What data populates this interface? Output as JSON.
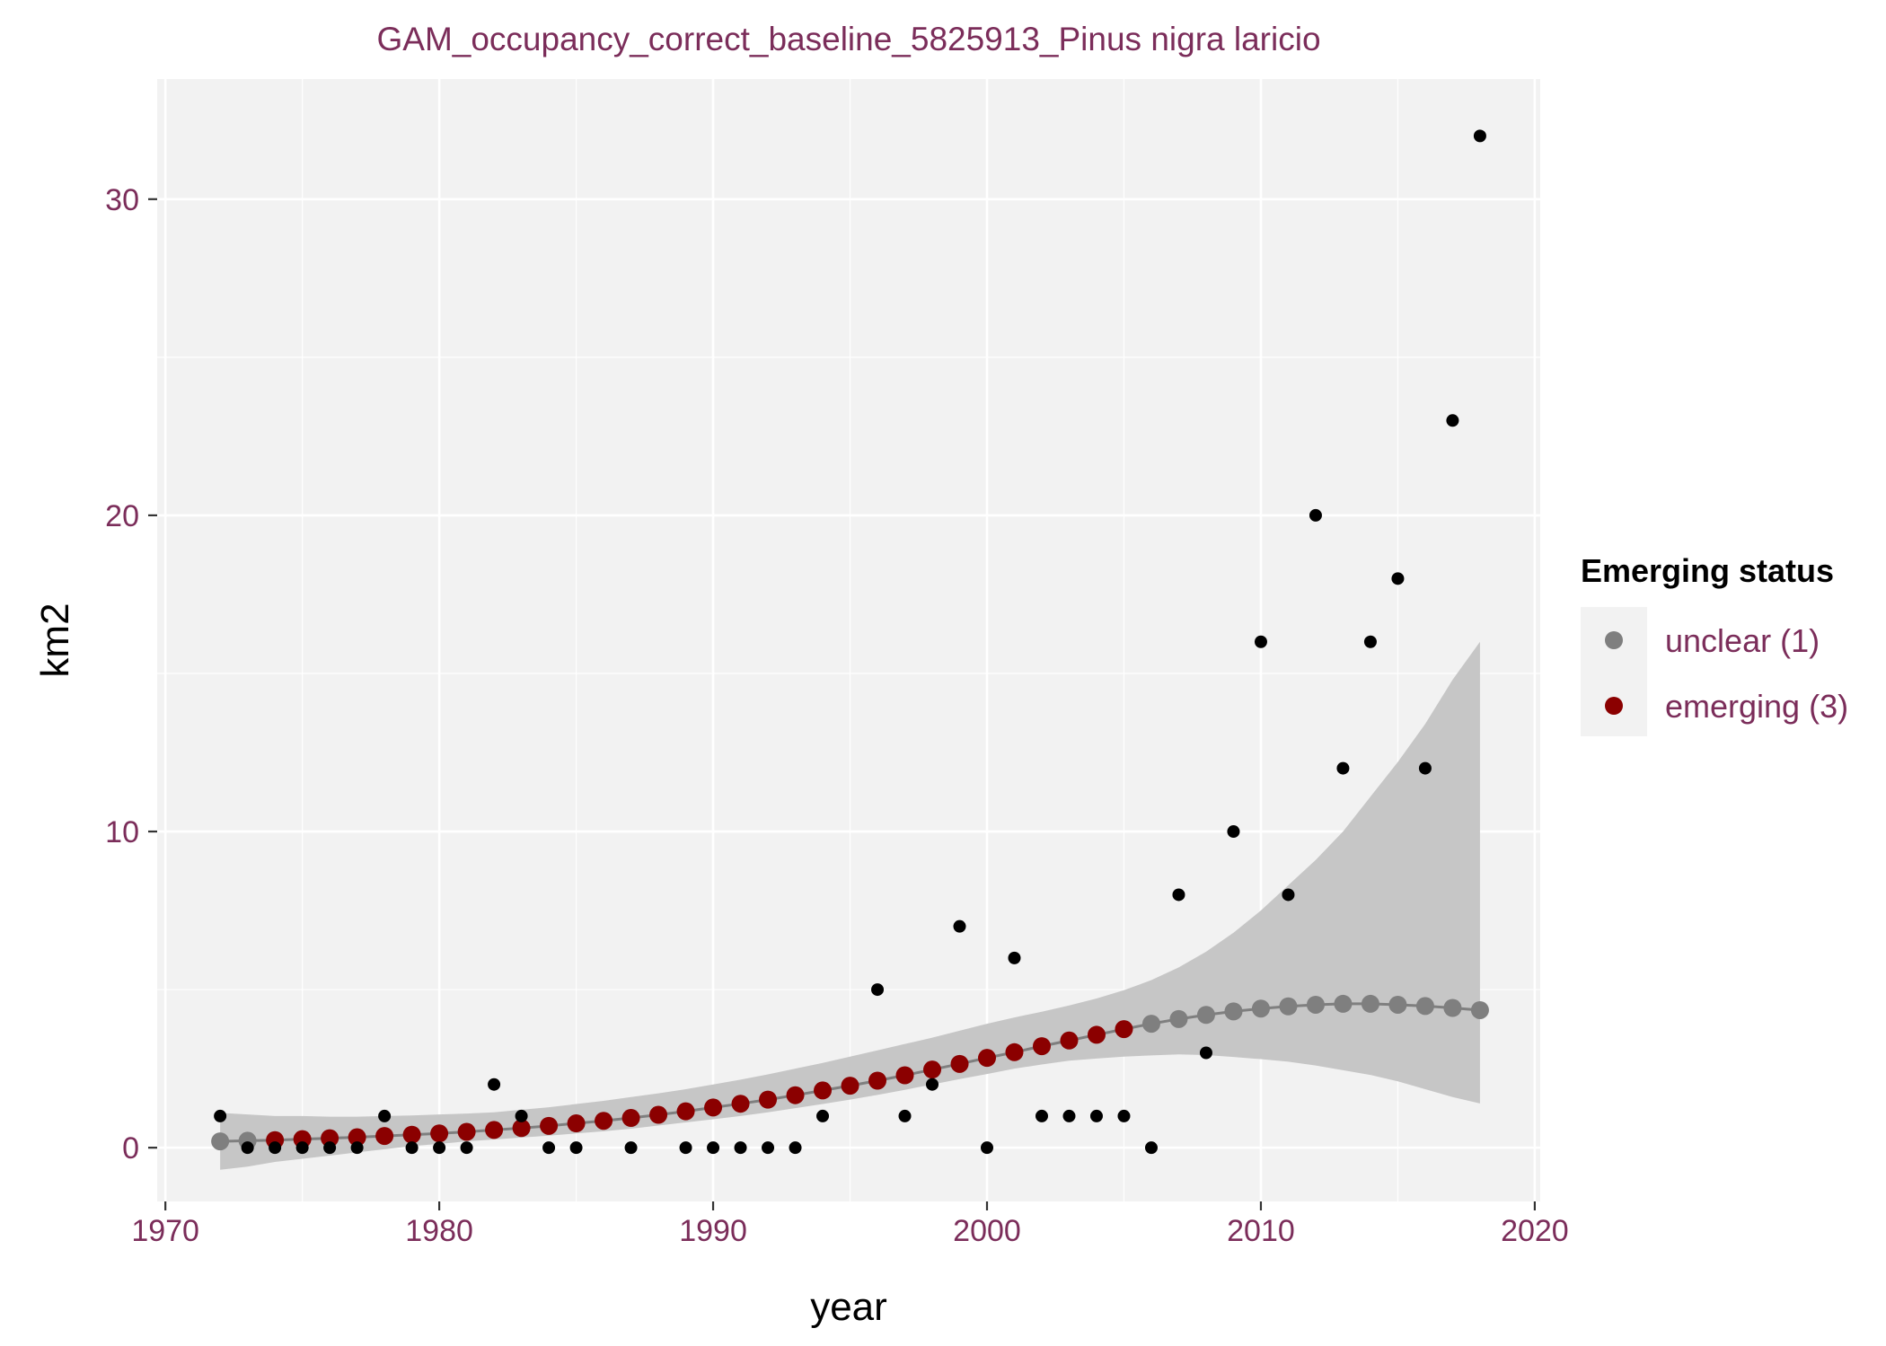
{
  "chart_data": {
    "type": "scatter",
    "title": "GAM_occupancy_correct_baseline_5825913_Pinus nigra laricio",
    "xlabel": "year",
    "ylabel": "km2",
    "xlim": [
      1969.7,
      2020.2
    ],
    "ylim": [
      -1.7,
      33.8
    ],
    "x_ticks": [
      1970,
      1980,
      1990,
      2000,
      2010,
      2020
    ],
    "y_ticks": [
      0,
      10,
      20,
      30
    ],
    "grid": true,
    "legend": {
      "title": "Emerging status",
      "placement": "right",
      "entries": [
        {
          "label": "unclear (1)",
          "color": "#7f7f7f"
        },
        {
          "label": "emerging (3)",
          "color": "#8b0000"
        }
      ]
    },
    "colors": {
      "title_text": "#7b2d5a",
      "tick_text": "#7b2d5a",
      "legend_label_text": "#7b2d5a",
      "panel_bg": "#f2f2f2",
      "grid": "#ffffff",
      "ribbon": "#c6c6c6",
      "fit_line": "#7f7f7f",
      "observed_point": "#000000"
    },
    "observed": {
      "name": "",
      "points": [
        [
          1972,
          1
        ],
        [
          1973,
          0
        ],
        [
          1974,
          0
        ],
        [
          1975,
          0
        ],
        [
          1976,
          0
        ],
        [
          1977,
          0
        ],
        [
          1978,
          1
        ],
        [
          1979,
          0
        ],
        [
          1980,
          0
        ],
        [
          1981,
          0
        ],
        [
          1982,
          2
        ],
        [
          1983,
          1
        ],
        [
          1984,
          0
        ],
        [
          1985,
          0
        ],
        [
          1987,
          0
        ],
        [
          1989,
          0
        ],
        [
          1990,
          0
        ],
        [
          1991,
          0
        ],
        [
          1992,
          0
        ],
        [
          1993,
          0
        ],
        [
          1994,
          1
        ],
        [
          1996,
          5
        ],
        [
          1997,
          1
        ],
        [
          1998,
          2
        ],
        [
          1999,
          7
        ],
        [
          2000,
          0
        ],
        [
          2001,
          6
        ],
        [
          2002,
          1
        ],
        [
          2003,
          1
        ],
        [
          2004,
          1
        ],
        [
          2005,
          1
        ],
        [
          2006,
          0
        ],
        [
          2007,
          8
        ],
        [
          2008,
          3
        ],
        [
          2009,
          10
        ],
        [
          2010,
          16
        ],
        [
          2011,
          8
        ],
        [
          2012,
          20
        ],
        [
          2013,
          12
        ],
        [
          2014,
          16
        ],
        [
          2015,
          18
        ],
        [
          2016,
          12
        ],
        [
          2017,
          23
        ],
        [
          2018,
          32
        ]
      ]
    },
    "fit": {
      "x": [
        1972,
        1973,
        1974,
        1975,
        1976,
        1977,
        1978,
        1979,
        1980,
        1981,
        1982,
        1983,
        1984,
        1985,
        1986,
        1987,
        1988,
        1989,
        1990,
        1991,
        1992,
        1993,
        1994,
        1995,
        1996,
        1997,
        1998,
        1999,
        2000,
        2001,
        2002,
        2003,
        2004,
        2005,
        2006,
        2007,
        2008,
        2009,
        2010,
        2011,
        2012,
        2013,
        2014,
        2015,
        2016,
        2017,
        2018
      ],
      "y": [
        0.2,
        0.22,
        0.24,
        0.27,
        0.3,
        0.33,
        0.37,
        0.41,
        0.45,
        0.5,
        0.56,
        0.62,
        0.69,
        0.77,
        0.85,
        0.94,
        1.04,
        1.15,
        1.27,
        1.39,
        1.52,
        1.66,
        1.81,
        1.96,
        2.12,
        2.29,
        2.47,
        2.65,
        2.84,
        3.02,
        3.21,
        3.39,
        3.57,
        3.75,
        3.92,
        4.07,
        4.2,
        4.31,
        4.4,
        4.47,
        4.52,
        4.55,
        4.55,
        4.52,
        4.48,
        4.42,
        4.35
      ],
      "status": [
        "unclear",
        "unclear",
        "emerging",
        "emerging",
        "emerging",
        "emerging",
        "emerging",
        "emerging",
        "emerging",
        "emerging",
        "emerging",
        "emerging",
        "emerging",
        "emerging",
        "emerging",
        "emerging",
        "emerging",
        "emerging",
        "emerging",
        "emerging",
        "emerging",
        "emerging",
        "emerging",
        "emerging",
        "emerging",
        "emerging",
        "emerging",
        "emerging",
        "emerging",
        "emerging",
        "emerging",
        "emerging",
        "emerging",
        "emerging",
        "unclear",
        "unclear",
        "unclear",
        "unclear",
        "unclear",
        "unclear",
        "unclear",
        "unclear",
        "unclear",
        "unclear",
        "unclear",
        "unclear",
        "unclear"
      ],
      "lower": [
        -0.7,
        -0.6,
        -0.45,
        -0.35,
        -0.25,
        -0.15,
        -0.05,
        0.05,
        0.12,
        0.2,
        0.26,
        0.32,
        0.38,
        0.45,
        0.52,
        0.6,
        0.7,
        0.8,
        0.9,
        1.0,
        1.12,
        1.25,
        1.38,
        1.52,
        1.67,
        1.83,
        2.0,
        2.17,
        2.33,
        2.5,
        2.63,
        2.75,
        2.82,
        2.88,
        2.92,
        2.95,
        2.93,
        2.87,
        2.8,
        2.72,
        2.6,
        2.45,
        2.3,
        2.1,
        1.85,
        1.6,
        1.4
      ],
      "upper": [
        1.1,
        1.05,
        1.0,
        1.0,
        0.98,
        0.98,
        1.0,
        1.02,
        1.05,
        1.08,
        1.12,
        1.2,
        1.28,
        1.38,
        1.48,
        1.6,
        1.72,
        1.85,
        2.0,
        2.15,
        2.32,
        2.5,
        2.68,
        2.88,
        3.08,
        3.28,
        3.48,
        3.7,
        3.92,
        4.12,
        4.3,
        4.5,
        4.72,
        4.98,
        5.3,
        5.7,
        6.2,
        6.8,
        7.5,
        8.3,
        9.1,
        10.0,
        11.1,
        12.2,
        13.4,
        14.8,
        16.0
      ]
    }
  }
}
